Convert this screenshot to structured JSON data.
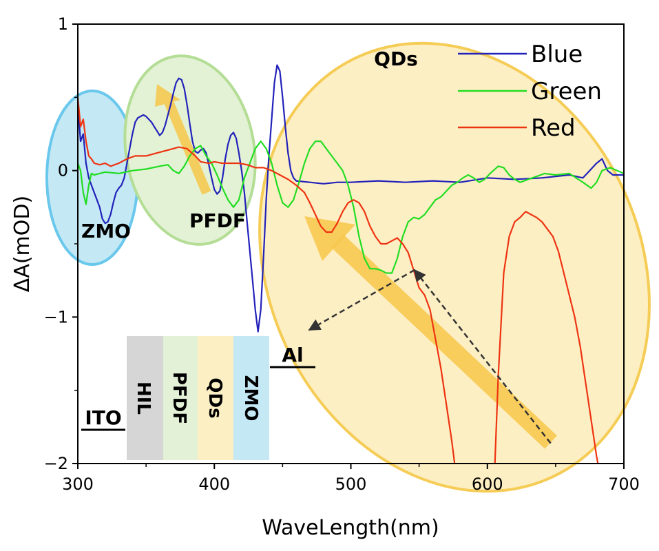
{
  "chart_data": {
    "type": "line",
    "xlabel": "WaveLength(nm)",
    "ylabel": "ΔA(mOD)",
    "xlim": [
      300,
      700
    ],
    "ylim": [
      -2,
      1
    ],
    "x_ticks": [
      300,
      400,
      500,
      600,
      700
    ],
    "y_ticks": [
      1,
      0,
      -1,
      -2
    ],
    "x_tick_labels": [
      "300",
      "400",
      "500",
      "600",
      "700"
    ],
    "y_tick_labels": [
      "1",
      "0",
      "−1",
      "−2"
    ],
    "legend_position": "top-right",
    "series": [
      {
        "name": "Blue",
        "color": "#2222bb",
        "points": [
          [
            300,
            0.45
          ],
          [
            302,
            0.2
          ],
          [
            304,
            0.25
          ],
          [
            306,
            0.05
          ],
          [
            308,
            -0.05
          ],
          [
            310,
            -0.1
          ],
          [
            312,
            -0.15
          ],
          [
            314,
            -0.2
          ],
          [
            316,
            -0.25
          ],
          [
            318,
            -0.33
          ],
          [
            320,
            -0.36
          ],
          [
            322,
            -0.35
          ],
          [
            324,
            -0.3
          ],
          [
            326,
            -0.22
          ],
          [
            328,
            -0.15
          ],
          [
            330,
            -0.12
          ],
          [
            332,
            -0.1
          ],
          [
            334,
            -0.05
          ],
          [
            336,
            0.05
          ],
          [
            338,
            0.15
          ],
          [
            340,
            0.25
          ],
          [
            342,
            0.33
          ],
          [
            344,
            0.36
          ],
          [
            346,
            0.37
          ],
          [
            348,
            0.38
          ],
          [
            350,
            0.37
          ],
          [
            352,
            0.35
          ],
          [
            354,
            0.33
          ],
          [
            356,
            0.3
          ],
          [
            358,
            0.27
          ],
          [
            360,
            0.24
          ],
          [
            362,
            0.26
          ],
          [
            364,
            0.31
          ],
          [
            366,
            0.38
          ],
          [
            368,
            0.45
          ],
          [
            370,
            0.53
          ],
          [
            372,
            0.6
          ],
          [
            374,
            0.63
          ],
          [
            376,
            0.62
          ],
          [
            378,
            0.56
          ],
          [
            380,
            0.45
          ],
          [
            382,
            0.32
          ],
          [
            384,
            0.2
          ],
          [
            386,
            0.13
          ],
          [
            388,
            0.12
          ],
          [
            390,
            0.14
          ],
          [
            392,
            0.15
          ],
          [
            394,
            0.12
          ],
          [
            396,
            0.04
          ],
          [
            398,
            -0.05
          ],
          [
            400,
            -0.13
          ],
          [
            402,
            -0.16
          ],
          [
            404,
            -0.14
          ],
          [
            406,
            -0.05
          ],
          [
            408,
            0.08
          ],
          [
            410,
            0.18
          ],
          [
            412,
            0.24
          ],
          [
            414,
            0.26
          ],
          [
            416,
            0.22
          ],
          [
            418,
            0.12
          ],
          [
            420,
            0.0
          ],
          [
            422,
            -0.15
          ],
          [
            424,
            -0.35
          ],
          [
            426,
            -0.55
          ],
          [
            428,
            -0.75
          ],
          [
            430,
            -0.95
          ],
          [
            432,
            -1.1
          ],
          [
            434,
            -0.95
          ],
          [
            436,
            -0.6
          ],
          [
            438,
            -0.2
          ],
          [
            440,
            0.1
          ],
          [
            442,
            0.35
          ],
          [
            444,
            0.6
          ],
          [
            446,
            0.72
          ],
          [
            448,
            0.68
          ],
          [
            450,
            0.5
          ],
          [
            452,
            0.3
          ],
          [
            454,
            0.12
          ],
          [
            456,
            0.0
          ],
          [
            458,
            -0.05
          ],
          [
            460,
            -0.07
          ],
          [
            470,
            -0.08
          ],
          [
            480,
            -0.09
          ],
          [
            490,
            -0.08
          ],
          [
            500,
            -0.08
          ],
          [
            520,
            -0.07
          ],
          [
            540,
            -0.08
          ],
          [
            560,
            -0.07
          ],
          [
            580,
            -0.08
          ],
          [
            600,
            -0.05
          ],
          [
            620,
            -0.06
          ],
          [
            640,
            -0.05
          ],
          [
            660,
            -0.03
          ],
          [
            670,
            -0.05
          ],
          [
            680,
            0.05
          ],
          [
            684,
            0.08
          ],
          [
            688,
            0.0
          ],
          [
            692,
            -0.03
          ],
          [
            700,
            -0.03
          ]
        ]
      },
      {
        "name": "Green",
        "color": "#22dd22",
        "points": [
          [
            300,
            0.05
          ],
          [
            302,
            0.0
          ],
          [
            304,
            -0.15
          ],
          [
            306,
            -0.23
          ],
          [
            308,
            -0.1
          ],
          [
            310,
            -0.02
          ],
          [
            312,
            -0.03
          ],
          [
            316,
            -0.02
          ],
          [
            320,
            -0.01
          ],
          [
            330,
            -0.02
          ],
          [
            340,
            0.0
          ],
          [
            350,
            0.01
          ],
          [
            360,
            0.03
          ],
          [
            366,
            0.04
          ],
          [
            370,
            0.0
          ],
          [
            374,
            -0.02
          ],
          [
            378,
            0.03
          ],
          [
            382,
            0.1
          ],
          [
            386,
            0.15
          ],
          [
            390,
            0.17
          ],
          [
            394,
            0.1
          ],
          [
            398,
            0.05
          ],
          [
            402,
            -0.03
          ],
          [
            406,
            -0.12
          ],
          [
            410,
            -0.2
          ],
          [
            414,
            -0.25
          ],
          [
            418,
            -0.2
          ],
          [
            422,
            -0.05
          ],
          [
            426,
            0.05
          ],
          [
            430,
            0.15
          ],
          [
            434,
            0.2
          ],
          [
            438,
            0.15
          ],
          [
            442,
            0.05
          ],
          [
            446,
            -0.1
          ],
          [
            450,
            -0.22
          ],
          [
            454,
            -0.25
          ],
          [
            458,
            -0.2
          ],
          [
            462,
            -0.08
          ],
          [
            466,
            0.05
          ],
          [
            470,
            0.15
          ],
          [
            474,
            0.2
          ],
          [
            478,
            0.2
          ],
          [
            482,
            0.15
          ],
          [
            486,
            0.1
          ],
          [
            490,
            0.05
          ],
          [
            494,
            0.0
          ],
          [
            498,
            -0.1
          ],
          [
            502,
            -0.25
          ],
          [
            506,
            -0.45
          ],
          [
            510,
            -0.6
          ],
          [
            514,
            -0.67
          ],
          [
            518,
            -0.67
          ],
          [
            522,
            -0.68
          ],
          [
            526,
            -0.7
          ],
          [
            530,
            -0.7
          ],
          [
            534,
            -0.6
          ],
          [
            538,
            -0.45
          ],
          [
            542,
            -0.35
          ],
          [
            546,
            -0.32
          ],
          [
            550,
            -0.33
          ],
          [
            554,
            -0.3
          ],
          [
            558,
            -0.25
          ],
          [
            562,
            -0.2
          ],
          [
            566,
            -0.18
          ],
          [
            570,
            -0.14
          ],
          [
            574,
            -0.1
          ],
          [
            578,
            -0.08
          ],
          [
            582,
            -0.05
          ],
          [
            586,
            -0.03
          ],
          [
            590,
            -0.05
          ],
          [
            594,
            -0.08
          ],
          [
            598,
            -0.06
          ],
          [
            602,
            -0.02
          ],
          [
            608,
            0.03
          ],
          [
            612,
            0.02
          ],
          [
            616,
            -0.03
          ],
          [
            620,
            -0.06
          ],
          [
            624,
            -0.08
          ],
          [
            630,
            -0.06
          ],
          [
            636,
            -0.04
          ],
          [
            642,
            -0.02
          ],
          [
            650,
            -0.03
          ],
          [
            660,
            -0.02
          ],
          [
            670,
            -0.08
          ],
          [
            676,
            -0.12
          ],
          [
            680,
            -0.08
          ],
          [
            684,
            0.0
          ],
          [
            690,
            0.02
          ],
          [
            700,
            -0.02
          ]
        ]
      },
      {
        "name": "Red",
        "color": "#ee3311",
        "points": [
          [
            300,
            0.5
          ],
          [
            302,
            0.3
          ],
          [
            304,
            0.35
          ],
          [
            306,
            0.2
          ],
          [
            308,
            0.1
          ],
          [
            310,
            0.08
          ],
          [
            312,
            0.05
          ],
          [
            316,
            0.04
          ],
          [
            320,
            0.05
          ],
          [
            324,
            0.03
          ],
          [
            330,
            0.05
          ],
          [
            336,
            0.08
          ],
          [
            342,
            0.1
          ],
          [
            350,
            0.1
          ],
          [
            358,
            0.12
          ],
          [
            366,
            0.14
          ],
          [
            374,
            0.16
          ],
          [
            380,
            0.15
          ],
          [
            386,
            0.1
          ],
          [
            390,
            0.06
          ],
          [
            396,
            0.05
          ],
          [
            400,
            0.06
          ],
          [
            406,
            0.05
          ],
          [
            412,
            0.05
          ],
          [
            418,
            0.05
          ],
          [
            424,
            0.04
          ],
          [
            430,
            0.02
          ],
          [
            436,
            0.02
          ],
          [
            442,
            0.0
          ],
          [
            448,
            -0.03
          ],
          [
            454,
            -0.06
          ],
          [
            460,
            -0.1
          ],
          [
            466,
            -0.15
          ],
          [
            470,
            -0.22
          ],
          [
            474,
            -0.3
          ],
          [
            478,
            -0.38
          ],
          [
            482,
            -0.42
          ],
          [
            486,
            -0.42
          ],
          [
            490,
            -0.36
          ],
          [
            494,
            -0.28
          ],
          [
            498,
            -0.22
          ],
          [
            502,
            -0.2
          ],
          [
            506,
            -0.22
          ],
          [
            510,
            -0.28
          ],
          [
            514,
            -0.38
          ],
          [
            518,
            -0.45
          ],
          [
            522,
            -0.5
          ],
          [
            526,
            -0.5
          ],
          [
            530,
            -0.48
          ],
          [
            534,
            -0.46
          ],
          [
            538,
            -0.5
          ],
          [
            542,
            -0.56
          ],
          [
            546,
            -0.68
          ],
          [
            550,
            -0.8
          ],
          [
            554,
            -0.85
          ],
          [
            558,
            -0.95
          ],
          [
            562,
            -1.15
          ],
          [
            566,
            -1.35
          ],
          [
            570,
            -1.6
          ],
          [
            574,
            -1.85
          ],
          [
            576,
            -2.0
          ],
          [
            576.5,
            -2.05
          ],
          [
            605,
            -2.05
          ],
          [
            605.5,
            -2.0
          ],
          [
            608,
            -1.4
          ],
          [
            612,
            -0.7
          ],
          [
            616,
            -0.45
          ],
          [
            620,
            -0.35
          ],
          [
            624,
            -0.32
          ],
          [
            628,
            -0.28
          ],
          [
            632,
            -0.3
          ],
          [
            636,
            -0.32
          ],
          [
            640,
            -0.35
          ],
          [
            644,
            -0.4
          ],
          [
            648,
            -0.45
          ],
          [
            652,
            -0.55
          ],
          [
            656,
            -0.7
          ],
          [
            660,
            -0.85
          ],
          [
            664,
            -1.0
          ],
          [
            668,
            -1.2
          ],
          [
            672,
            -1.45
          ],
          [
            676,
            -1.7
          ],
          [
            680,
            -1.95
          ],
          [
            682,
            -2.05
          ]
        ]
      }
    ],
    "annotations": {
      "region_labels": [
        "ZMO",
        "PFDF",
        "QDs"
      ],
      "device_layers": [
        "HIL",
        "PFDF",
        "QDs",
        "ZMO"
      ],
      "electrodes": [
        "ITO",
        "Al"
      ]
    }
  }
}
